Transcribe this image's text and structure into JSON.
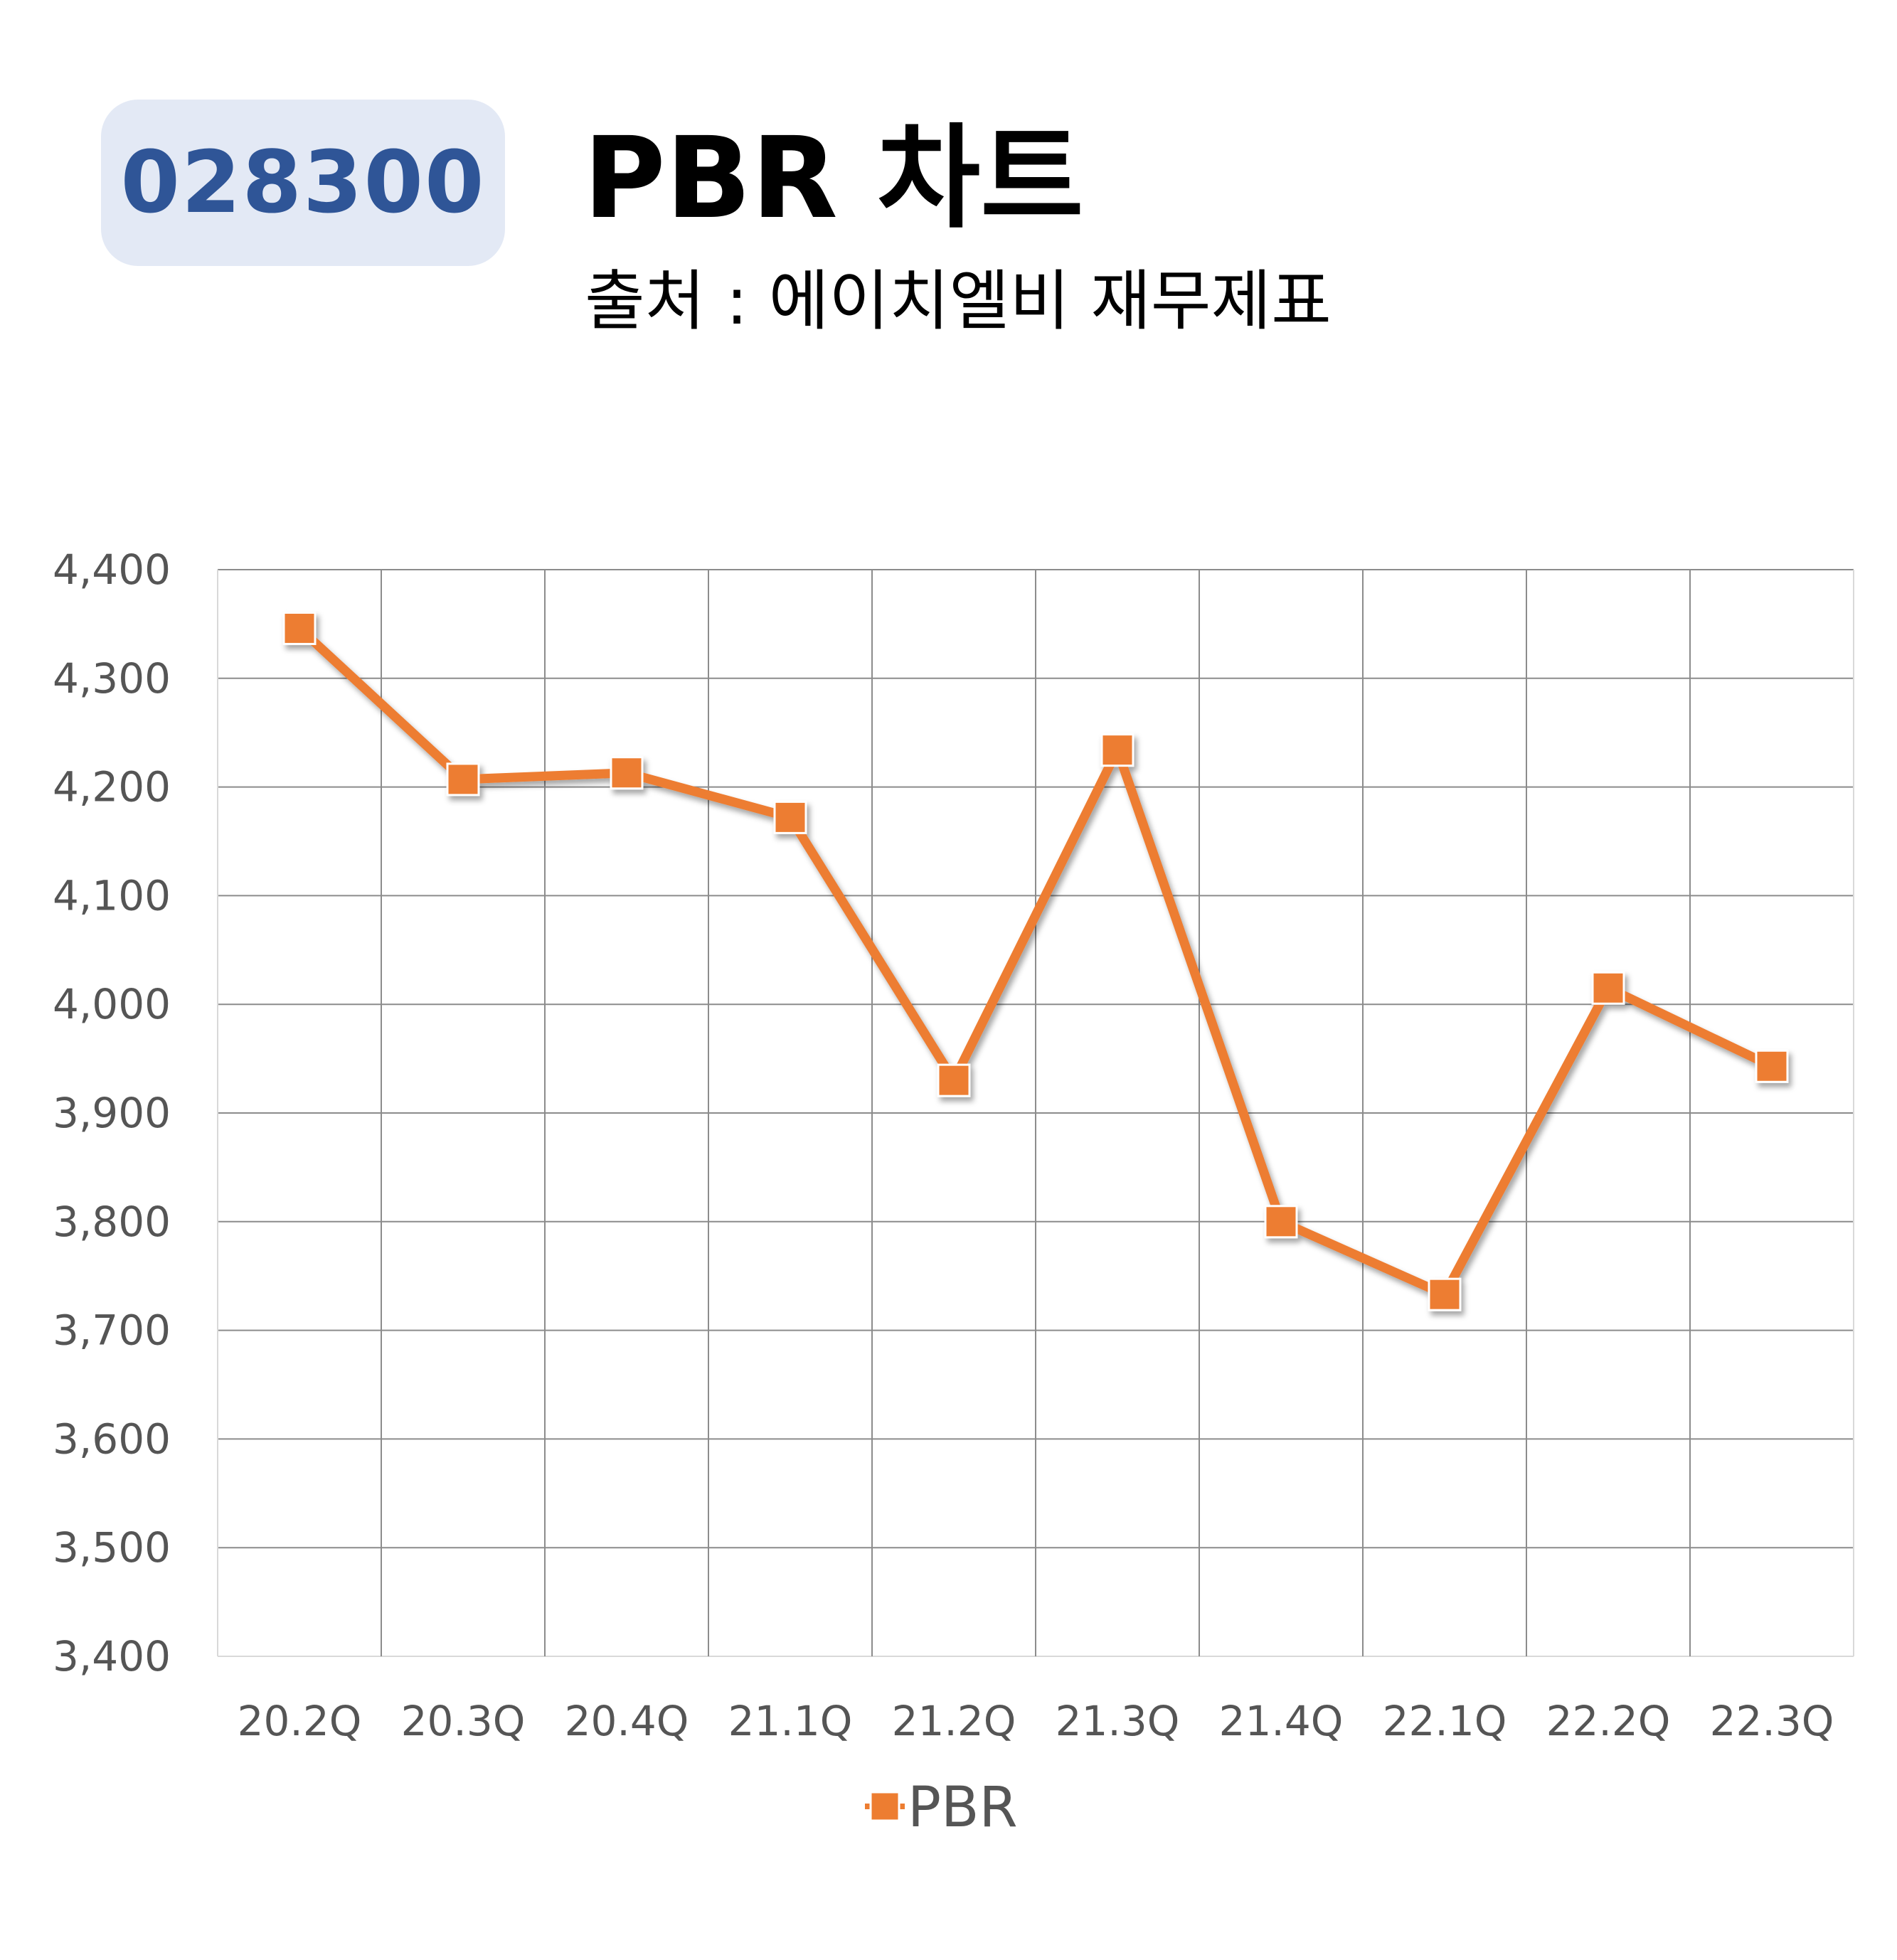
{
  "header": {
    "code": "028300",
    "title": "PBR 차트",
    "subtitle": "출처 : 에이치엘비 재무제표"
  },
  "chart_data": {
    "type": "line",
    "title": "PBR 차트",
    "categories": [
      "20.2Q",
      "20.3Q",
      "20.4Q",
      "21.1Q",
      "21.2Q",
      "21.3Q",
      "21.4Q",
      "22.1Q",
      "22.2Q",
      "22.3Q"
    ],
    "series": [
      {
        "name": "PBR",
        "values": [
          4346,
          4207,
          4213,
          4172,
          3930,
          4234,
          3800,
          3733,
          4015,
          3943
        ]
      }
    ],
    "ylim": [
      3400,
      4400
    ],
    "yticks": [
      3400,
      3500,
      3600,
      3700,
      3800,
      3900,
      4000,
      4100,
      4200,
      4300,
      4400
    ],
    "ytick_labels": [
      "3,400",
      "3,500",
      "3,600",
      "3,700",
      "3,800",
      "3,900",
      "4,000",
      "4,100",
      "4,200",
      "4,300",
      "4,400"
    ],
    "grid": true,
    "legend": "bottom-center",
    "color": "#ed7d31"
  }
}
